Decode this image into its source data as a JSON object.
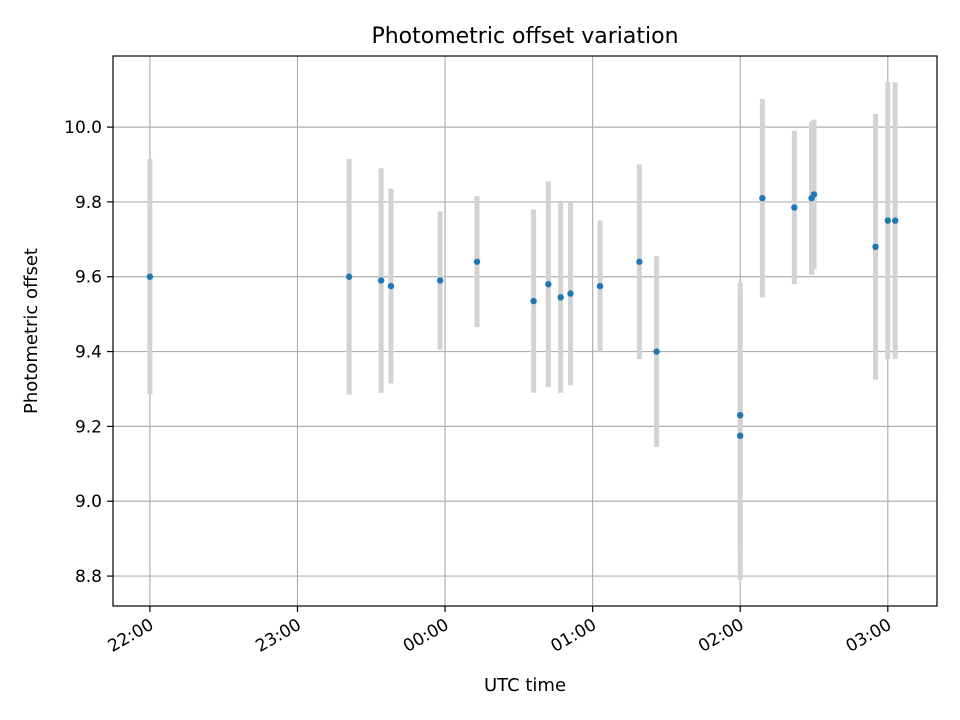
{
  "chart_data": {
    "type": "scatter",
    "title": "Photometric offset variation",
    "xlabel": "UTC time",
    "ylabel": "Photometric offset",
    "x_unit": "UTC time (HH:MM, from 22:00 to 03:00 next day)",
    "xlim": [
      "21:45",
      "03:20"
    ],
    "ylim": [
      8.72,
      10.19
    ],
    "x_ticks": [
      "22:00",
      "23:00",
      "00:00",
      "01:00",
      "02:00",
      "03:00"
    ],
    "y_ticks": [
      "8.8",
      "9.0",
      "9.2",
      "9.4",
      "9.6",
      "9.8",
      "10.0"
    ],
    "grid": true,
    "marker_color": "#1f77b4",
    "errorbar_color": "#d3d3d3",
    "points": [
      {
        "t": "22:00",
        "y": 9.6,
        "err": 0.315
      },
      {
        "t": "23:21",
        "y": 9.6,
        "err": 0.315
      },
      {
        "t": "23:34",
        "y": 9.59,
        "err": 0.3
      },
      {
        "t": "23:38",
        "y": 9.575,
        "err": 0.26
      },
      {
        "t": "23:58",
        "y": 9.59,
        "err": 0.185
      },
      {
        "t": "00:13",
        "y": 9.64,
        "err": 0.175
      },
      {
        "t": "00:36",
        "y": 9.535,
        "err": 0.245
      },
      {
        "t": "00:42",
        "y": 9.58,
        "err": 0.275
      },
      {
        "t": "00:47",
        "y": 9.545,
        "err": 0.255
      },
      {
        "t": "00:51",
        "y": 9.555,
        "err": 0.245
      },
      {
        "t": "01:03",
        "y": 9.575,
        "err": 0.175
      },
      {
        "t": "01:19",
        "y": 9.64,
        "err": 0.26
      },
      {
        "t": "01:26",
        "y": 9.4,
        "err": 0.255
      },
      {
        "t": "02:00",
        "y": 9.23,
        "err": 0.355
      },
      {
        "t": "02:00",
        "y": 9.175,
        "err": 0.385
      },
      {
        "t": "02:09",
        "y": 9.81,
        "err": 0.265
      },
      {
        "t": "02:22",
        "y": 9.785,
        "err": 0.205
      },
      {
        "t": "02:29",
        "y": 9.81,
        "err": 0.205
      },
      {
        "t": "02:30",
        "y": 9.82,
        "err": 0.2
      },
      {
        "t": "02:55",
        "y": 9.68,
        "err": 0.355
      },
      {
        "t": "03:00",
        "y": 9.75,
        "err": 0.37
      },
      {
        "t": "03:03",
        "y": 9.75,
        "err": 0.37
      }
    ]
  }
}
